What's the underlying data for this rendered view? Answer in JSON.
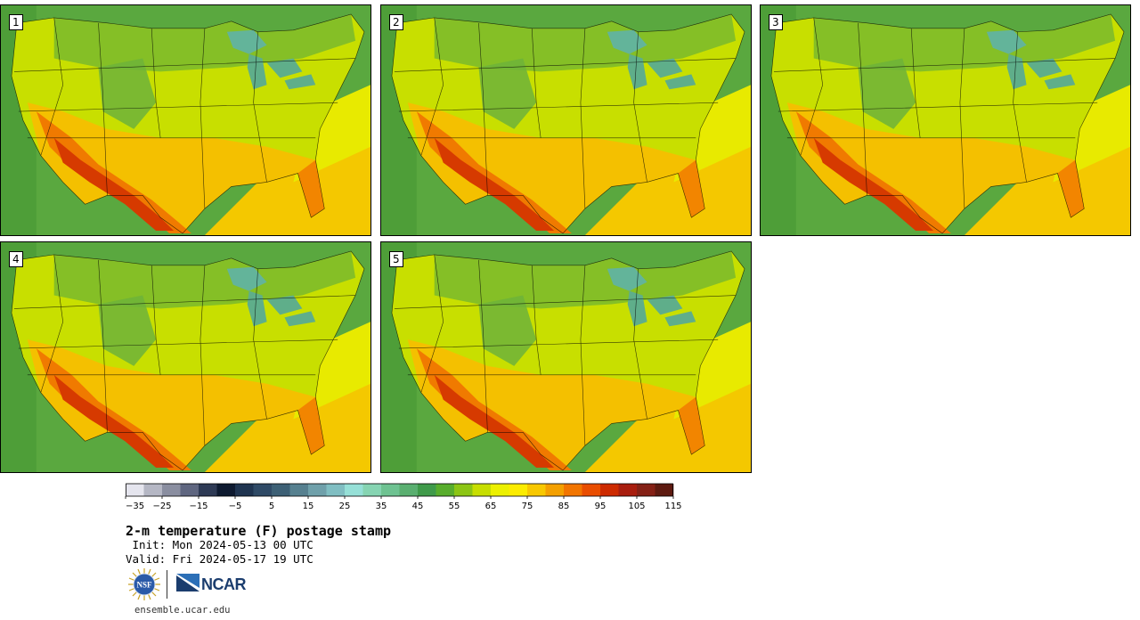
{
  "panels": [
    {
      "label": "1"
    },
    {
      "label": "2"
    },
    {
      "label": "3"
    },
    {
      "label": "4"
    },
    {
      "label": "5"
    }
  ],
  "colorbar": {
    "colors": [
      "#e5e5ee",
      "#b5b7c4",
      "#8a8ea0",
      "#5f6680",
      "#2e3a55",
      "#0e1a30",
      "#1f3450",
      "#2f4a66",
      "#3d6075",
      "#56808f",
      "#6fa0aa",
      "#80bec2",
      "#96e0d7",
      "#86d4b2",
      "#6ec291",
      "#5aaf70",
      "#3f9a4a",
      "#58ad2c",
      "#8cc514",
      "#c7de00",
      "#ecf000",
      "#fcec00",
      "#f8c800",
      "#f4a000",
      "#f27500",
      "#e94d00",
      "#cd2a00",
      "#a81d0e",
      "#842015",
      "#5d1a10"
    ],
    "tick_labels": [
      "−35",
      "−25",
      "−15",
      "−5",
      "5",
      "15",
      "25",
      "35",
      "45",
      "55",
      "65",
      "75",
      "85",
      "95",
      "105",
      "115"
    ]
  },
  "title": "2-m temperature (F) postage stamp",
  "init": " Init: Mon 2024-05-13 00 UTC",
  "valid": "Valid: Fri 2024-05-17 19 UTC",
  "logos": {
    "nsf": "NSF",
    "ncar": "NCAR"
  },
  "site": "ensemble.ucar.edu"
}
